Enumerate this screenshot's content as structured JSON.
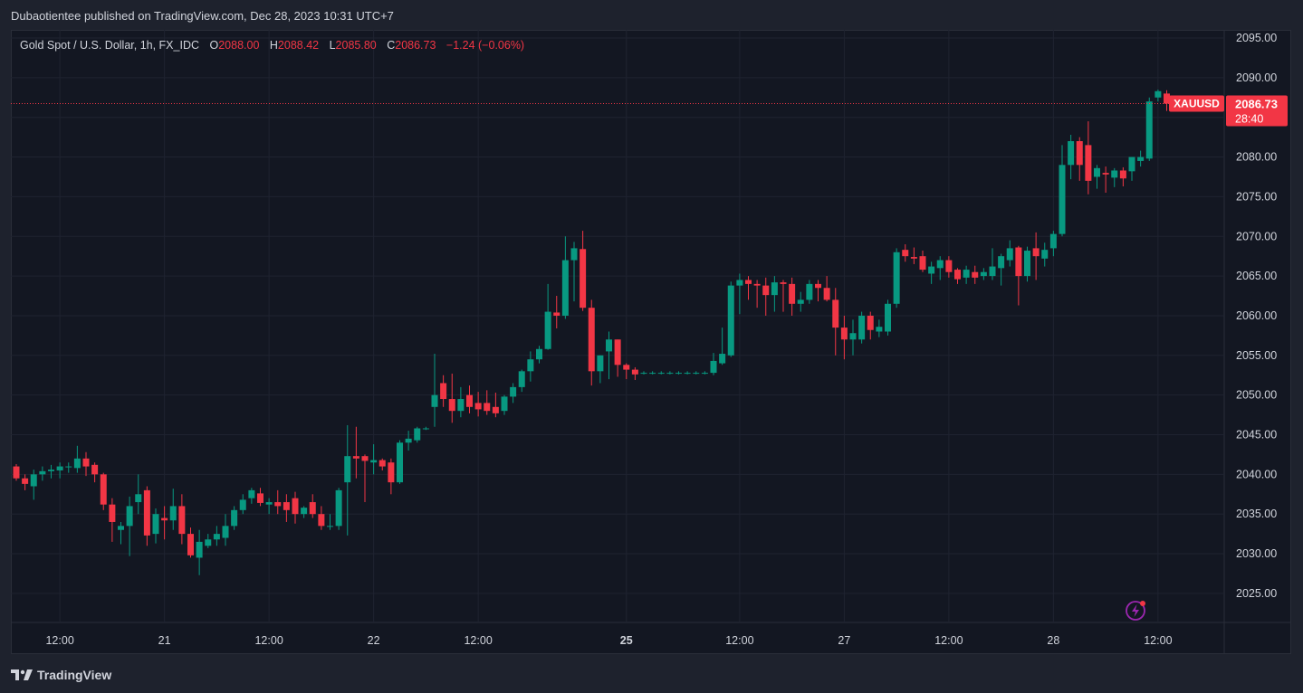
{
  "header": {
    "published": "Dubaotientee published on TradingView.com, Dec 28, 2023 10:31 UTC+7"
  },
  "legend": {
    "symbol": "Gold Spot / U.S. Dollar, 1h, FX_IDC",
    "o_label": "O",
    "o_value": "2088.00",
    "h_label": "H",
    "h_value": "2088.42",
    "l_label": "L",
    "l_value": "2085.80",
    "c_label": "C",
    "c_value": "2086.73",
    "change": "−1.24 (−0.06%)"
  },
  "footer": {
    "brand": "TradingView"
  },
  "icons": {
    "logo": "tradingview-logo-icon",
    "alert": "lightning-icon"
  },
  "colors": {
    "up": "#089981",
    "down": "#f23645",
    "background": "#131722",
    "grid": "#1f2330",
    "text": "#d1d4dc",
    "price_tag": "#f23645"
  },
  "chart_data": {
    "type": "candlestick",
    "symbol": "XAUUSD",
    "timeframe": "1h",
    "last_price": "2086.73",
    "countdown": "28:40",
    "ylim": [
      2020,
      2096
    ],
    "y_ticks": [
      "2095.00",
      "2090.00",
      "2085.00",
      "2080.00",
      "2075.00",
      "2070.00",
      "2065.00",
      "2060.00",
      "2055.00",
      "2050.00",
      "2045.00",
      "2040.00",
      "2035.00",
      "2030.00",
      "2025.00"
    ],
    "x_ticks": [
      {
        "label": "12:00",
        "bar": 5,
        "bold": false
      },
      {
        "label": "21",
        "bar": 17,
        "bold": false
      },
      {
        "label": "12:00",
        "bar": 29,
        "bold": false
      },
      {
        "label": "22",
        "bar": 41,
        "bold": false
      },
      {
        "label": "12:00",
        "bar": 53,
        "bold": false
      },
      {
        "label": "25",
        "bar": 70,
        "bold": true
      },
      {
        "label": "12:00",
        "bar": 83,
        "bold": false
      },
      {
        "label": "27",
        "bar": 95,
        "bold": false
      },
      {
        "label": "12:00",
        "bar": 107,
        "bold": false
      },
      {
        "label": "28",
        "bar": 119,
        "bold": false
      },
      {
        "label": "12:00",
        "bar": 131,
        "bold": false
      }
    ],
    "candles": [
      [
        2041.0,
        2041.3,
        2039.2,
        2039.5
      ],
      [
        2039.5,
        2040.0,
        2038.0,
        2038.8
      ],
      [
        2038.5,
        2040.6,
        2036.8,
        2040.0
      ],
      [
        2040.0,
        2041.0,
        2039.2,
        2040.4
      ],
      [
        2040.4,
        2041.2,
        2039.5,
        2040.6
      ],
      [
        2040.5,
        2041.5,
        2039.5,
        2041.0
      ],
      [
        2041.0,
        2041.5,
        2040.2,
        2041.0
      ],
      [
        2040.8,
        2043.6,
        2040.2,
        2042.0
      ],
      [
        2042.0,
        2042.8,
        2039.8,
        2041.0
      ],
      [
        2041.2,
        2041.5,
        2039.0,
        2040.0
      ],
      [
        2040.0,
        2040.2,
        2035.5,
        2036.2
      ],
      [
        2036.2,
        2037.0,
        2031.5,
        2034.0
      ],
      [
        2033.0,
        2034.0,
        2031.2,
        2033.5
      ],
      [
        2033.5,
        2037.2,
        2029.7,
        2036.0
      ],
      [
        2036.5,
        2040.0,
        2035.0,
        2037.5
      ],
      [
        2038.0,
        2038.5,
        2031.0,
        2032.3
      ],
      [
        2032.5,
        2035.7,
        2031.3,
        2035.0
      ],
      [
        2034.5,
        2036.0,
        2031.8,
        2034.2
      ],
      [
        2034.2,
        2038.2,
        2033.0,
        2036.0
      ],
      [
        2036.0,
        2037.5,
        2031.2,
        2032.5
      ],
      [
        2032.5,
        2033.3,
        2029.5,
        2029.8
      ],
      [
        2029.5,
        2033.0,
        2027.3,
        2031.5
      ],
      [
        2031.0,
        2032.5,
        2030.7,
        2031.8
      ],
      [
        2031.8,
        2033.5,
        2031.0,
        2032.5
      ],
      [
        2032.0,
        2035.0,
        2031.0,
        2033.5
      ],
      [
        2033.5,
        2036.0,
        2033.0,
        2035.5
      ],
      [
        2035.5,
        2037.5,
        2035.0,
        2036.8
      ],
      [
        2037.0,
        2038.3,
        2036.3,
        2038.0
      ],
      [
        2037.6,
        2038.3,
        2036.0,
        2036.4
      ],
      [
        2036.2,
        2037.0,
        2035.0,
        2036.5
      ],
      [
        2036.5,
        2038.0,
        2035.0,
        2036.0
      ],
      [
        2036.5,
        2037.5,
        2034.0,
        2035.5
      ],
      [
        2037.0,
        2037.8,
        2033.8,
        2035.0
      ],
      [
        2035.0,
        2036.0,
        2034.5,
        2035.8
      ],
      [
        2036.5,
        2037.5,
        2034.5,
        2035.0
      ],
      [
        2035.0,
        2036.0,
        2033.0,
        2033.5
      ],
      [
        2033.5,
        2035.0,
        2033.0,
        2033.5
      ],
      [
        2033.5,
        2038.3,
        2033.0,
        2038.0
      ],
      [
        2039.0,
        2046.2,
        2032.3,
        2042.3
      ],
      [
        2042.3,
        2046.0,
        2039.5,
        2042.0
      ],
      [
        2042.3,
        2042.5,
        2036.5,
        2041.7
      ],
      [
        2041.5,
        2043.8,
        2040.0,
        2041.8
      ],
      [
        2041.8,
        2042.0,
        2040.5,
        2041.0
      ],
      [
        2041.5,
        2042.0,
        2037.5,
        2039.0
      ],
      [
        2039.0,
        2044.3,
        2038.8,
        2044.0
      ],
      [
        2044.0,
        2045.5,
        2043.0,
        2044.5
      ],
      [
        2044.3,
        2046.0,
        2044.0,
        2045.8
      ],
      [
        2045.8,
        2046.0,
        2045.6,
        2045.8
      ],
      [
        2048.5,
        2055.2,
        2046.0,
        2050.0
      ],
      [
        2051.5,
        2052.5,
        2048.5,
        2049.5
      ],
      [
        2049.5,
        2052.7,
        2046.5,
        2048.0
      ],
      [
        2048.0,
        2051.0,
        2047.2,
        2049.5
      ],
      [
        2050.0,
        2051.2,
        2047.7,
        2048.5
      ],
      [
        2049.0,
        2050.4,
        2047.3,
        2048.2
      ],
      [
        2049.0,
        2050.6,
        2047.5,
        2048.0
      ],
      [
        2048.5,
        2050.3,
        2047.2,
        2047.7
      ],
      [
        2048.0,
        2050.0,
        2047.5,
        2049.8
      ],
      [
        2049.8,
        2051.5,
        2049.0,
        2051.0
      ],
      [
        2051.0,
        2053.2,
        2050.4,
        2053.0
      ],
      [
        2053.0,
        2055.5,
        2051.7,
        2054.5
      ],
      [
        2054.5,
        2056.2,
        2054.0,
        2055.8
      ],
      [
        2055.8,
        2064.0,
        2055.7,
        2060.5
      ],
      [
        2060.4,
        2062.5,
        2058.4,
        2060.0
      ],
      [
        2060.0,
        2070.0,
        2059.6,
        2067.0
      ],
      [
        2067.0,
        2069.3,
        2061.8,
        2068.5
      ],
      [
        2068.4,
        2070.7,
        2060.6,
        2061.0
      ],
      [
        2061.0,
        2062.0,
        2051.2,
        2053.0
      ],
      [
        2053.0,
        2055.0,
        2051.5,
        2055.0
      ],
      [
        2055.5,
        2058.0,
        2052.0,
        2057.0
      ],
      [
        2057.0,
        2057.0,
        2052.3,
        2053.8
      ],
      [
        2053.8,
        2054.0,
        2052.0,
        2053.2
      ],
      [
        2053.2,
        2053.5,
        2051.9,
        2052.6
      ],
      [
        2052.8,
        2053.0,
        2052.6,
        2052.8
      ],
      [
        2052.8,
        2053.0,
        2052.6,
        2052.8
      ],
      [
        2052.8,
        2053.0,
        2052.6,
        2052.8
      ],
      [
        2052.8,
        2053.0,
        2052.6,
        2052.8
      ],
      [
        2052.8,
        2053.0,
        2052.6,
        2052.8
      ],
      [
        2052.8,
        2053.0,
        2052.6,
        2052.8
      ],
      [
        2052.8,
        2053.0,
        2052.6,
        2052.8
      ],
      [
        2052.8,
        2053.0,
        2052.6,
        2052.8
      ],
      [
        2052.8,
        2055.3,
        2052.5,
        2054.3
      ],
      [
        2054.0,
        2058.5,
        2053.8,
        2055.2
      ],
      [
        2055.0,
        2064.3,
        2054.8,
        2063.8
      ],
      [
        2063.8,
        2065.3,
        2060.2,
        2064.5
      ],
      [
        2064.5,
        2065.0,
        2062.0,
        2064.0
      ],
      [
        2064.0,
        2064.5,
        2061.0,
        2063.8
      ],
      [
        2063.8,
        2064.8,
        2060.0,
        2062.6
      ],
      [
        2062.6,
        2065.0,
        2060.5,
        2064.2
      ],
      [
        2064.2,
        2064.5,
        2060.5,
        2064.0
      ],
      [
        2064.0,
        2064.8,
        2060.0,
        2061.5
      ],
      [
        2061.5,
        2063.0,
        2060.5,
        2062.0
      ],
      [
        2062.0,
        2064.5,
        2061.5,
        2064.0
      ],
      [
        2064.0,
        2064.5,
        2061.8,
        2063.5
      ],
      [
        2063.5,
        2065.0,
        2061.8,
        2062.0
      ],
      [
        2062.0,
        2063.5,
        2055.0,
        2058.5
      ],
      [
        2058.5,
        2060.0,
        2054.5,
        2057.0
      ],
      [
        2057.0,
        2059.5,
        2055.0,
        2057.8
      ],
      [
        2057.0,
        2060.5,
        2056.5,
        2060.0
      ],
      [
        2060.0,
        2060.5,
        2057.0,
        2058.2
      ],
      [
        2058.0,
        2059.5,
        2057.3,
        2058.6
      ],
      [
        2058.0,
        2062.0,
        2057.5,
        2061.5
      ],
      [
        2061.5,
        2068.5,
        2061.0,
        2068.0
      ],
      [
        2068.3,
        2069.0,
        2066.8,
        2067.5
      ],
      [
        2067.4,
        2068.6,
        2066.5,
        2067.2
      ],
      [
        2067.5,
        2068.2,
        2065.5,
        2065.8
      ],
      [
        2065.3,
        2066.8,
        2064.0,
        2066.2
      ],
      [
        2066.0,
        2067.5,
        2064.5,
        2067.0
      ],
      [
        2067.0,
        2067.5,
        2064.8,
        2065.5
      ],
      [
        2065.8,
        2066.0,
        2064.0,
        2064.6
      ],
      [
        2064.8,
        2066.3,
        2064.0,
        2065.8
      ],
      [
        2065.5,
        2066.3,
        2064.0,
        2064.8
      ],
      [
        2065.0,
        2066.0,
        2064.5,
        2065.5
      ],
      [
        2065.0,
        2068.5,
        2064.5,
        2066.2
      ],
      [
        2066.0,
        2067.8,
        2063.8,
        2067.5
      ],
      [
        2067.0,
        2069.5,
        2066.2,
        2068.5
      ],
      [
        2068.6,
        2068.8,
        2061.3,
        2065.0
      ],
      [
        2065.0,
        2068.7,
        2064.3,
        2068.2
      ],
      [
        2068.5,
        2070.5,
        2064.5,
        2067.5
      ],
      [
        2067.2,
        2069.2,
        2066.2,
        2068.3
      ],
      [
        2068.5,
        2070.7,
        2067.5,
        2070.3
      ],
      [
        2070.3,
        2081.5,
        2070.0,
        2079.0
      ],
      [
        2079.0,
        2082.8,
        2077.2,
        2082.0
      ],
      [
        2082.0,
        2082.5,
        2077.0,
        2079.0
      ],
      [
        2081.5,
        2084.5,
        2075.3,
        2077.0
      ],
      [
        2077.5,
        2079.0,
        2076.0,
        2078.6
      ],
      [
        2078.0,
        2078.8,
        2075.5,
        2077.8
      ],
      [
        2077.4,
        2078.6,
        2076.2,
        2078.3
      ],
      [
        2078.3,
        2078.7,
        2076.3,
        2077.3
      ],
      [
        2078.2,
        2080.0,
        2077.0,
        2080.0
      ],
      [
        2079.5,
        2080.8,
        2078.8,
        2080.0
      ],
      [
        2079.8,
        2087.5,
        2079.5,
        2087.0
      ],
      [
        2087.5,
        2088.5,
        2087.0,
        2088.3
      ],
      [
        2088.0,
        2088.42,
        2085.8,
        2086.73
      ]
    ]
  }
}
